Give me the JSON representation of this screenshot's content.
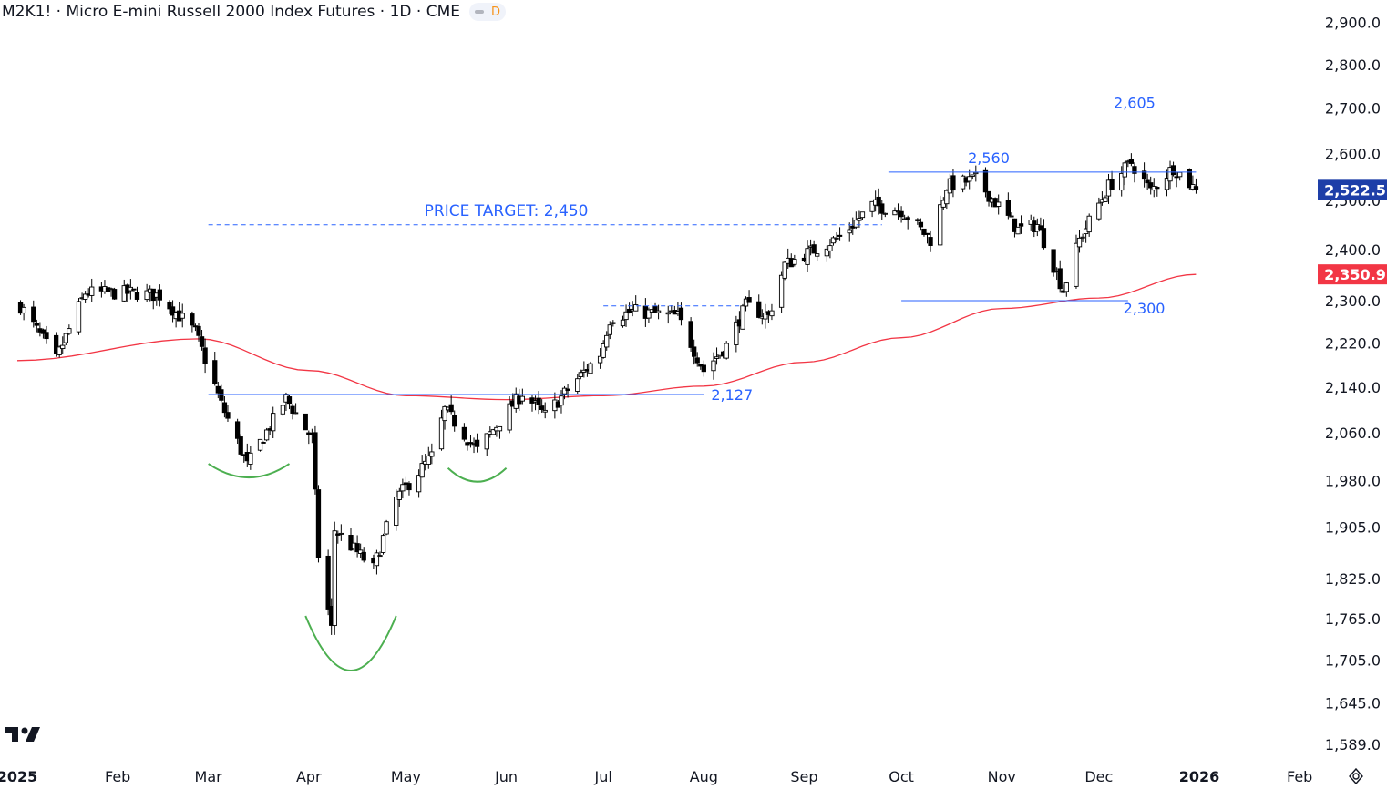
{
  "header": {
    "title": "M2K1! · Micro E-mini Russell 2000 Index Futures · 1D · CME",
    "interval_badge": "D"
  },
  "colors": {
    "up": "#ffffff",
    "down": "#000000",
    "wick": "#000000",
    "ma": "#f23645",
    "levels": "#2962ff",
    "arcs": "#4caf50",
    "price_badge": "#1e3fa8",
    "ma_badge": "#f23645"
  },
  "icons": [
    "tradingview-logo-icon",
    "settings-icon"
  ],
  "chart_data": {
    "type": "candlestick",
    "title": "Micro E-mini Russell 2000 Index Futures",
    "ticker": "M2K1!",
    "interval": "1D",
    "exchange": "CME",
    "y_axis": {
      "ticks": [
        1589.0,
        1645.0,
        1705.0,
        1765.0,
        1825.0,
        1905.0,
        1980.0,
        2060.0,
        2140.0,
        2220.0,
        2300.0,
        2400.0,
        2500.0,
        2600.0,
        2700.0,
        2800.0,
        2900.0
      ],
      "tick_labels": [
        "1,589.0",
        "1,645.0",
        "1,705.0",
        "1,765.0",
        "1,825.0",
        "1,905.0",
        "1,980.0",
        "2,060.0",
        "2,140.0",
        "2,220.0",
        "2,300.0",
        "2,400.0",
        "2,500.0",
        "2,600.0",
        "2,700.0",
        "2,800.0",
        "2,900.0"
      ],
      "scale": "log"
    },
    "x_axis": {
      "labels": [
        "2025",
        "Feb",
        "Mar",
        "Apr",
        "May",
        "Jun",
        "Jul",
        "Aug",
        "Sep",
        "Oct",
        "Nov",
        "Dec",
        "2026",
        "Feb"
      ],
      "bold": [
        "2025",
        "2026"
      ]
    },
    "ohlc_anchors": [
      {
        "date": "2025-01-02",
        "close": 2290
      },
      {
        "date": "2025-01-13",
        "close": 2190
      },
      {
        "date": "2025-01-22",
        "close": 2315
      },
      {
        "date": "2025-02-06",
        "close": 2315
      },
      {
        "date": "2025-02-14",
        "close": 2310
      },
      {
        "date": "2025-02-25",
        "close": 2240
      },
      {
        "date": "2025-03-05",
        "close": 2110
      },
      {
        "date": "2025-03-13",
        "close": 2005
      },
      {
        "date": "2025-03-25",
        "close": 2120
      },
      {
        "date": "2025-04-02",
        "close": 2050
      },
      {
        "date": "2025-04-04",
        "close": 1860
      },
      {
        "date": "2025-04-08",
        "close": 1750
      },
      {
        "date": "2025-04-09",
        "close": 1900
      },
      {
        "date": "2025-04-21",
        "close": 1840
      },
      {
        "date": "2025-04-28",
        "close": 1950
      },
      {
        "date": "2025-05-09",
        "close": 2020
      },
      {
        "date": "2025-05-13",
        "close": 2100
      },
      {
        "date": "2025-05-23",
        "close": 2030
      },
      {
        "date": "2025-06-06",
        "close": 2130
      },
      {
        "date": "2025-06-13",
        "close": 2090
      },
      {
        "date": "2025-06-30",
        "close": 2200
      },
      {
        "date": "2025-07-03",
        "close": 2265
      },
      {
        "date": "2025-07-10",
        "close": 2280
      },
      {
        "date": "2025-07-24",
        "close": 2270
      },
      {
        "date": "2025-08-01",
        "close": 2170
      },
      {
        "date": "2025-08-08",
        "close": 2215
      },
      {
        "date": "2025-08-14",
        "close": 2290
      },
      {
        "date": "2025-08-21",
        "close": 2270
      },
      {
        "date": "2025-08-26",
        "close": 2370
      },
      {
        "date": "2025-09-12",
        "close": 2425
      },
      {
        "date": "2025-09-22",
        "close": 2490
      },
      {
        "date": "2025-10-01",
        "close": 2480
      },
      {
        "date": "2025-10-10",
        "close": 2420
      },
      {
        "date": "2025-10-15",
        "close": 2530
      },
      {
        "date": "2025-10-24",
        "close": 2545
      },
      {
        "date": "2025-11-06",
        "close": 2440
      },
      {
        "date": "2025-11-12",
        "close": 2450
      },
      {
        "date": "2025-11-20",
        "close": 2320
      },
      {
        "date": "2025-11-25",
        "close": 2420
      },
      {
        "date": "2025-12-04",
        "close": 2530
      },
      {
        "date": "2025-12-11",
        "close": 2580
      },
      {
        "date": "2025-12-17",
        "close": 2520
      },
      {
        "date": "2025-12-24",
        "close": 2570
      },
      {
        "date": "2025-12-31",
        "close": 2522.5
      }
    ],
    "moving_average": {
      "name": "MA",
      "points": [
        {
          "date": "2025-01-01",
          "value": 2188
        },
        {
          "date": "2025-02-26",
          "value": 2228
        },
        {
          "date": "2025-04-01",
          "value": 2170
        },
        {
          "date": "2025-05-01",
          "value": 2125
        },
        {
          "date": "2025-06-01",
          "value": 2118
        },
        {
          "date": "2025-07-01",
          "value": 2125
        },
        {
          "date": "2025-08-01",
          "value": 2142
        },
        {
          "date": "2025-09-01",
          "value": 2185
        },
        {
          "date": "2025-10-01",
          "value": 2230
        },
        {
          "date": "2025-11-01",
          "value": 2285
        },
        {
          "date": "2025-12-01",
          "value": 2305
        },
        {
          "date": "2025-12-31",
          "value": 2350.9
        }
      ]
    },
    "last_price": {
      "value": 2522.5,
      "label": "2,522.5"
    },
    "ma_last": {
      "value": 2350.9,
      "label": "2,350.9"
    },
    "annotations": {
      "price_target": {
        "label": "PRICE TARGET: 2,450",
        "value": 2450,
        "from": "2025-03-01",
        "to": "2025-09-25",
        "style": "dashed"
      },
      "neckline_2127": {
        "label": "2,127",
        "value": 2127,
        "from": "2025-03-01",
        "to": "2025-08-01"
      },
      "resistance_jul": {
        "value": 2290,
        "from": "2025-07-01",
        "to": "2025-08-12",
        "style": "dashed"
      },
      "top_2560": {
        "label": "2,560",
        "value": 2560,
        "from": "2025-09-27",
        "to": "2025-12-31"
      },
      "peak_2605": {
        "label": "2,605",
        "date": "2025-12-12"
      },
      "support_2300": {
        "label": "2,300",
        "value": 2300,
        "from": "2025-10-01",
        "to": "2025-12-10"
      },
      "arcs": [
        {
          "pattern": "left-shoulder",
          "from": "2025-03-01",
          "to": "2025-03-26",
          "value": 1985
        },
        {
          "pattern": "head",
          "from": "2025-03-31",
          "to": "2025-04-28",
          "value": 1690
        },
        {
          "pattern": "right-shoulder",
          "from": "2025-05-14",
          "to": "2025-06-01",
          "value": 1978
        }
      ]
    }
  }
}
